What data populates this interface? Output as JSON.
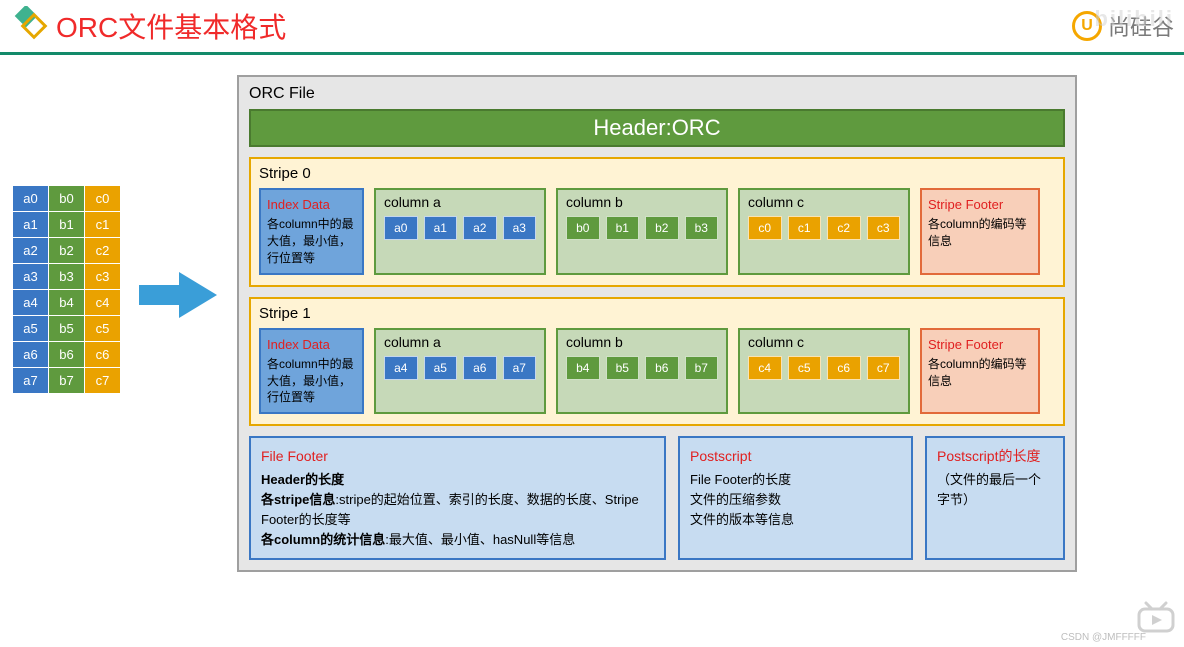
{
  "page": {
    "title": "ORC文件基本格式",
    "brand_text": "尚硅谷",
    "brand_badge": "U",
    "title_color": "#f02a2a",
    "divider_color": "#138a6a"
  },
  "source_table": {
    "columns": [
      {
        "key": "a",
        "color": "#3a77c4"
      },
      {
        "key": "b",
        "color": "#5f9a3e"
      },
      {
        "key": "c",
        "color": "#eaa200"
      }
    ],
    "rows": [
      [
        "a0",
        "b0",
        "c0"
      ],
      [
        "a1",
        "b1",
        "c1"
      ],
      [
        "a2",
        "b2",
        "c2"
      ],
      [
        "a3",
        "b3",
        "c3"
      ],
      [
        "a4",
        "b4",
        "c4"
      ],
      [
        "a5",
        "b5",
        "c5"
      ],
      [
        "a6",
        "b6",
        "c6"
      ],
      [
        "a7",
        "b7",
        "c7"
      ]
    ]
  },
  "arrow_color": "#3a9ed8",
  "orc": {
    "box_bg": "#e6e6e6",
    "box_border": "#9f9f9f",
    "title": "ORC File",
    "header_label": "Header:ORC",
    "header_bg": "#5f9a3e",
    "stripe_border": "#e6a700",
    "stripe_bg": "#fff3d4",
    "index": {
      "title": "Index Data",
      "desc": "各column中的最大值，最小值，行位置等",
      "bg": "#6fa4db",
      "border": "#3a77c4"
    },
    "columns_meta": {
      "a": {
        "title": "column a",
        "bg": "#c6d9b8",
        "border": "#5f9a3e",
        "cell_bg": "#3a77c4"
      },
      "b": {
        "title": "column b",
        "bg": "#c6d9b8",
        "border": "#5f9a3e",
        "cell_bg": "#5f9a3e"
      },
      "c": {
        "title": "column c",
        "bg": "#c6d9b8",
        "border": "#5f9a3e",
        "cell_bg": "#eaa200"
      }
    },
    "stripe_footer": {
      "title": "Stripe Footer",
      "desc": "各column的编码等信息",
      "bg": "#f8cfb9",
      "border": "#e26a3a"
    },
    "stripes": [
      {
        "title": "Stripe 0",
        "col_a": [
          "a0",
          "a1",
          "a2",
          "a3"
        ],
        "col_b": [
          "b0",
          "b1",
          "b2",
          "b3"
        ],
        "col_c": [
          "c0",
          "c1",
          "c2",
          "c3"
        ]
      },
      {
        "title": "Stripe 1",
        "col_a": [
          "a4",
          "a5",
          "a6",
          "a7"
        ],
        "col_b": [
          "b4",
          "b5",
          "b6",
          "b7"
        ],
        "col_c": [
          "c4",
          "c5",
          "c6",
          "c7"
        ]
      }
    ],
    "file_footer": {
      "title": "File Footer",
      "line1_b": "Header的长度",
      "line2_b": "各stripe信息",
      "line2_t": ":stripe的起始位置、索引的长度、数据的长度、Stripe Footer的长度等",
      "line3_b": "各column的统计信息",
      "line3_t": ":最大值、最小值、hasNull等信息",
      "bg": "#c7dcf1",
      "border": "#3a77c4"
    },
    "postscript": {
      "title": "Postscript",
      "line1": "File Footer的长度",
      "line2": "文件的压缩参数",
      "line3": "文件的版本等信息"
    },
    "postscript_len": {
      "title": "Postscript的长度",
      "desc": "（文件的最后一个字节）"
    }
  },
  "watermark": {
    "ghost": "bilibili",
    "csdn": "CSDN @JMFFFFF"
  }
}
